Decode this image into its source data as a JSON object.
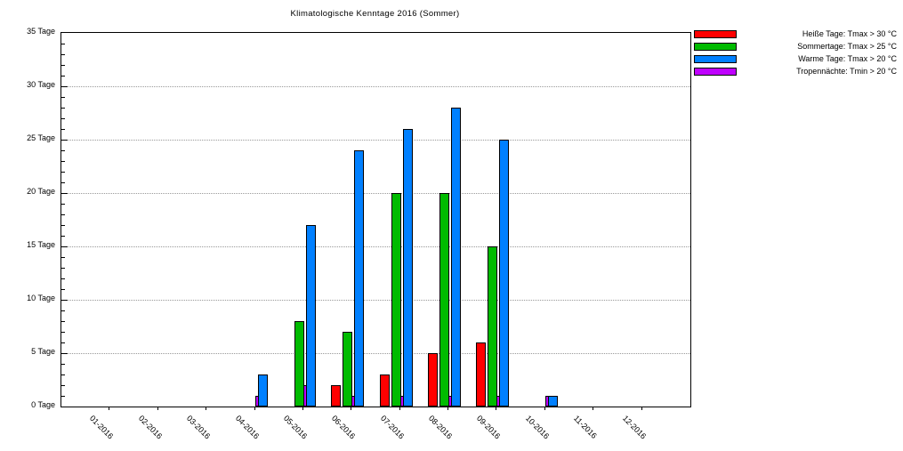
{
  "chart_data": {
    "type": "bar",
    "title": "Klimatologische Kenntage 2016 (Sommer)",
    "categories": [
      "01-2016",
      "02-2016",
      "03-2016",
      "04-2016",
      "05-2016",
      "06-2016",
      "07-2016",
      "08-2016",
      "09-2016",
      "10-2016",
      "11-2016",
      "12-2016"
    ],
    "series": [
      {
        "name": "Heiße Tage: Tmax > 30 °C",
        "slug": "heisse-tage",
        "color": "#ff0000",
        "values": [
          0,
          0,
          0,
          0,
          0,
          2,
          3,
          5,
          6,
          0,
          0,
          0
        ]
      },
      {
        "name": "Sommertage: Tmax > 25 °C",
        "slug": "sommertage",
        "color": "#00bb00",
        "values": [
          0,
          0,
          0,
          0,
          8,
          7,
          20,
          20,
          15,
          0,
          0,
          0
        ]
      },
      {
        "name": "Warme Tage: Tmax > 20 °C",
        "slug": "warme-tage",
        "color": "#0080ff",
        "values": [
          0,
          0,
          0,
          3,
          17,
          24,
          26,
          28,
          25,
          1,
          0,
          0
        ]
      },
      {
        "name": "Tropennächte: Tmin > 20 °C",
        "slug": "tropennaechte",
        "color": "#bf00ff",
        "values": [
          0,
          0,
          0,
          1,
          2,
          1,
          1,
          1,
          1,
          1,
          0,
          0
        ]
      }
    ],
    "ylim": [
      0,
      35
    ],
    "ytick_step": 5,
    "ytick_minor_step": 1,
    "ytick_suffix": " Tage",
    "xlabel_rotation_deg": 45,
    "grid": "horizontal-dotted",
    "grid_color": "#999999",
    "axis_color": "#000000",
    "background_color": "#ffffff",
    "legend_position": "outside-right-top"
  }
}
